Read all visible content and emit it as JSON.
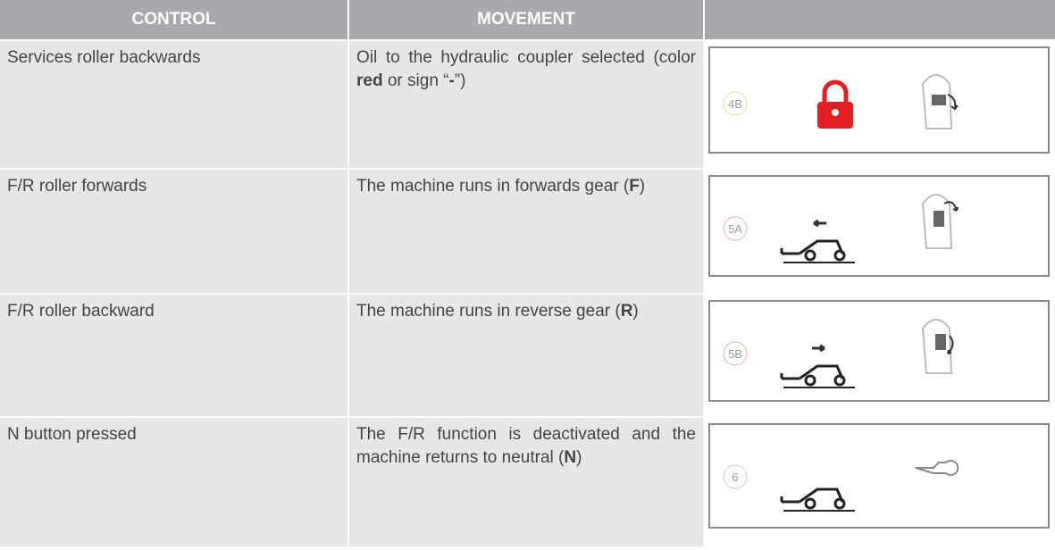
{
  "table": {
    "header": [
      "CONTROL",
      "MOVEMENT"
    ],
    "rows": [
      {
        "control": "Services roller backwards",
        "movement": [
          "Oil to the hydraulic coupler selected (color ",
          "red",
          " or sign “",
          "-",
          "”)"
        ],
        "badge": "4B"
      },
      {
        "control": "F/R roller forwards",
        "movement": [
          "The machine runs in forwards gear (",
          "F",
          ")"
        ],
        "badge": "5A"
      },
      {
        "control": "F/R roller backward",
        "movement": [
          "The machine runs in reverse gear (",
          "R",
          ")"
        ],
        "badge": "5B"
      },
      {
        "control": "N button pressed",
        "movement": [
          "The F/R function is deactivated and the machine returns to neutral (",
          "N",
          ")"
        ],
        "badge": "6"
      }
    ]
  }
}
